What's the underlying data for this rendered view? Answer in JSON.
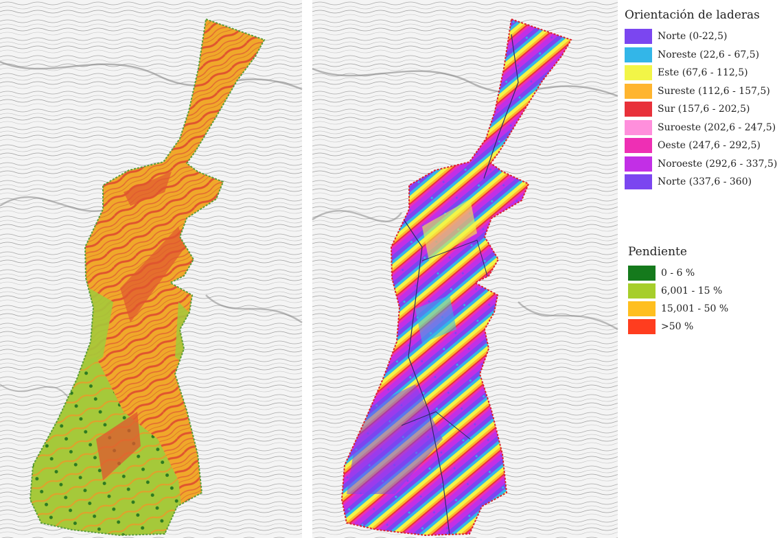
{
  "legend_orientation": {
    "title": "Orientación de laderas",
    "items": [
      {
        "label": "Norte (0-22,5)",
        "color": "#7b46f0"
      },
      {
        "label": "Noreste (22,6 - 67,5)",
        "color": "#33b6e8"
      },
      {
        "label": "Este (67,6 - 112,5)",
        "color": "#f2f547"
      },
      {
        "label": "Sureste (112,6 - 157,5)",
        "color": "#ffb52e"
      },
      {
        "label": "Sur (157,6 - 202,5)",
        "color": "#e8313a"
      },
      {
        "label": "Suroeste (202,6 - 247,5)",
        "color": "#ff8fdc"
      },
      {
        "label": "Oeste (247,6 - 292,5)",
        "color": "#ee2fb4"
      },
      {
        "label": "Noroeste (292,6 - 337,5)",
        "color": "#c22fe6"
      },
      {
        "label": "Norte (337,6 - 360)",
        "color": "#7b46f0"
      }
    ]
  },
  "legend_slope": {
    "title": "Pendiente",
    "items": [
      {
        "label": "0 - 6 %",
        "color": "#157a1c"
      },
      {
        "label": "6,001 - 15 %",
        "color": "#a6ce2b"
      },
      {
        "label": "15,001 - 50 %",
        "color": "#ffbf1f"
      },
      {
        "label": ">50 %",
        "color": "#ff3d1f"
      }
    ]
  },
  "maps": {
    "left": {
      "theme": "pendiente",
      "boundary_color": "#5a9e3a"
    },
    "right": {
      "theme": "orientacion",
      "boundary_color": "#d9232e"
    }
  }
}
